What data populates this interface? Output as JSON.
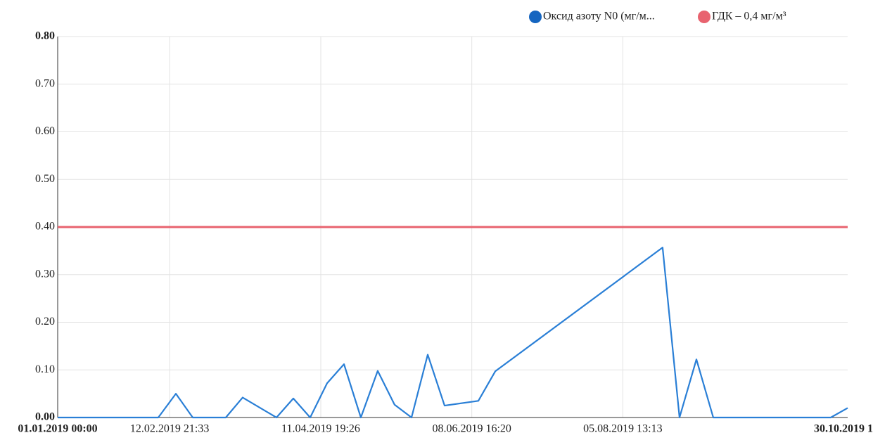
{
  "chart_data": {
    "type": "line",
    "x": [
      "2019-01-01T00:00",
      "2019-02-08T13:00",
      "2019-02-15T07:00",
      "2019-02-21T18:00",
      "2019-03-06T10:00",
      "2019-03-12T21:00",
      "2019-03-25T20:00",
      "2019-04-01T07:00",
      "2019-04-07T18:00",
      "2019-04-14T05:30",
      "2019-04-20T17:00",
      "2019-04-27T04:00",
      "2019-05-03T15:00",
      "2019-05-10T02:00",
      "2019-05-16T14:00",
      "2019-05-22T19:00",
      "2019-05-29T06:00",
      "2019-06-11T04:30",
      "2019-06-17T16:00",
      "2019-08-20T19:00",
      "2019-08-27T06:30",
      "2019-09-02T18:00",
      "2019-09-09T05:00",
      "2019-10-24T05:30",
      "2019-10-30T17:00"
    ],
    "series": [
      {
        "name": "Оксид азоту N0 (мг/м...",
        "color": "#2a7fd6",
        "legend_color": "#1565c0",
        "values": [
          0,
          0,
          0.05,
          0,
          0,
          0.042,
          0,
          0.04,
          0,
          0.072,
          0.112,
          0,
          0.098,
          0.027,
          0,
          0.132,
          0.025,
          0.035,
          0.097,
          0.357,
          0,
          0.122,
          0,
          0,
          0.02
        ]
      },
      {
        "name": "ГДК – 0,4 мг/м³",
        "color": "#e8636f",
        "x": [
          "2019-01-01T00:00",
          "2019-10-30T17:00"
        ],
        "values": [
          0.4,
          0.4
        ]
      }
    ],
    "xlim": [
      "2019-01-01T00:00",
      "2019-10-30T17:00"
    ],
    "xticks": [
      {
        "value": "2019-01-01T00:00",
        "label": "01.01.2019 00:00"
      },
      {
        "value": "2019-02-12T21:33",
        "label": "12.02.2019 21:33"
      },
      {
        "value": "2019-04-11T19:26",
        "label": "11.04.2019 19:26"
      },
      {
        "value": "2019-06-08T16:20",
        "label": "08.06.2019 16:20"
      },
      {
        "value": "2019-08-05T13:13",
        "label": "05.08.2019 13:13"
      },
      {
        "value": "2019-10-30T17:00",
        "label": "30.10.2019 1"
      }
    ],
    "ylim": [
      0,
      0.8
    ],
    "yticks": [
      {
        "value": 0,
        "label": "0.00"
      },
      {
        "value": 0.1,
        "label": "0.10"
      },
      {
        "value": 0.2,
        "label": "0.20"
      },
      {
        "value": 0.3,
        "label": "0.30"
      },
      {
        "value": 0.4,
        "label": "0.40"
      },
      {
        "value": 0.5,
        "label": "0.50"
      },
      {
        "value": 0.6,
        "label": "0.60"
      },
      {
        "value": 0.7,
        "label": "0.70"
      },
      {
        "value": 0.8,
        "label": "0.80"
      }
    ],
    "grid": true
  }
}
